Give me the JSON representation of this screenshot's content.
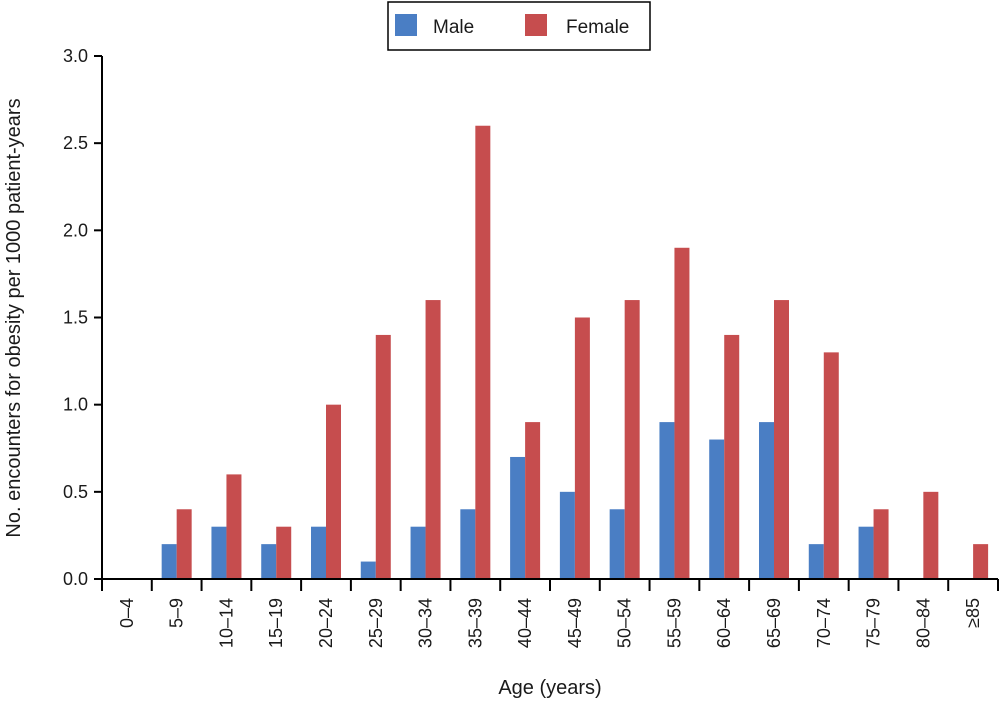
{
  "chart_data": {
    "type": "bar",
    "categories": [
      "0–4",
      "5–9",
      "10–14",
      "15–19",
      "20–24",
      "25–29",
      "30–34",
      "35–39",
      "40–44",
      "45–49",
      "50–54",
      "55–59",
      "60–64",
      "65–69",
      "70–74",
      "75–79",
      "80–84",
      "≥85"
    ],
    "series": [
      {
        "name": "Male",
        "color": "#4a7ec4",
        "values": [
          0,
          0.2,
          0.3,
          0.2,
          0.3,
          0.1,
          0.3,
          0.4,
          0.7,
          0.5,
          0.4,
          0.9,
          0.8,
          0.9,
          0.2,
          0.3,
          0,
          0
        ]
      },
      {
        "name": "Female",
        "color": "#c64d4e",
        "values": [
          0,
          0.4,
          0.6,
          0.3,
          1.0,
          1.4,
          1.6,
          2.6,
          0.9,
          1.5,
          1.6,
          1.9,
          1.4,
          1.6,
          1.3,
          0.4,
          0.5,
          0.2
        ]
      }
    ],
    "xlabel": "Age (years)",
    "ylabel": "No. encounters for obesity per 1000 patient-years",
    "ylim": [
      0,
      3.0
    ],
    "yticks": [
      "0.0",
      "0.5",
      "1.0",
      "1.5",
      "2.0",
      "2.5",
      "3.0"
    ],
    "grid": false,
    "legend_position": "top-center"
  }
}
